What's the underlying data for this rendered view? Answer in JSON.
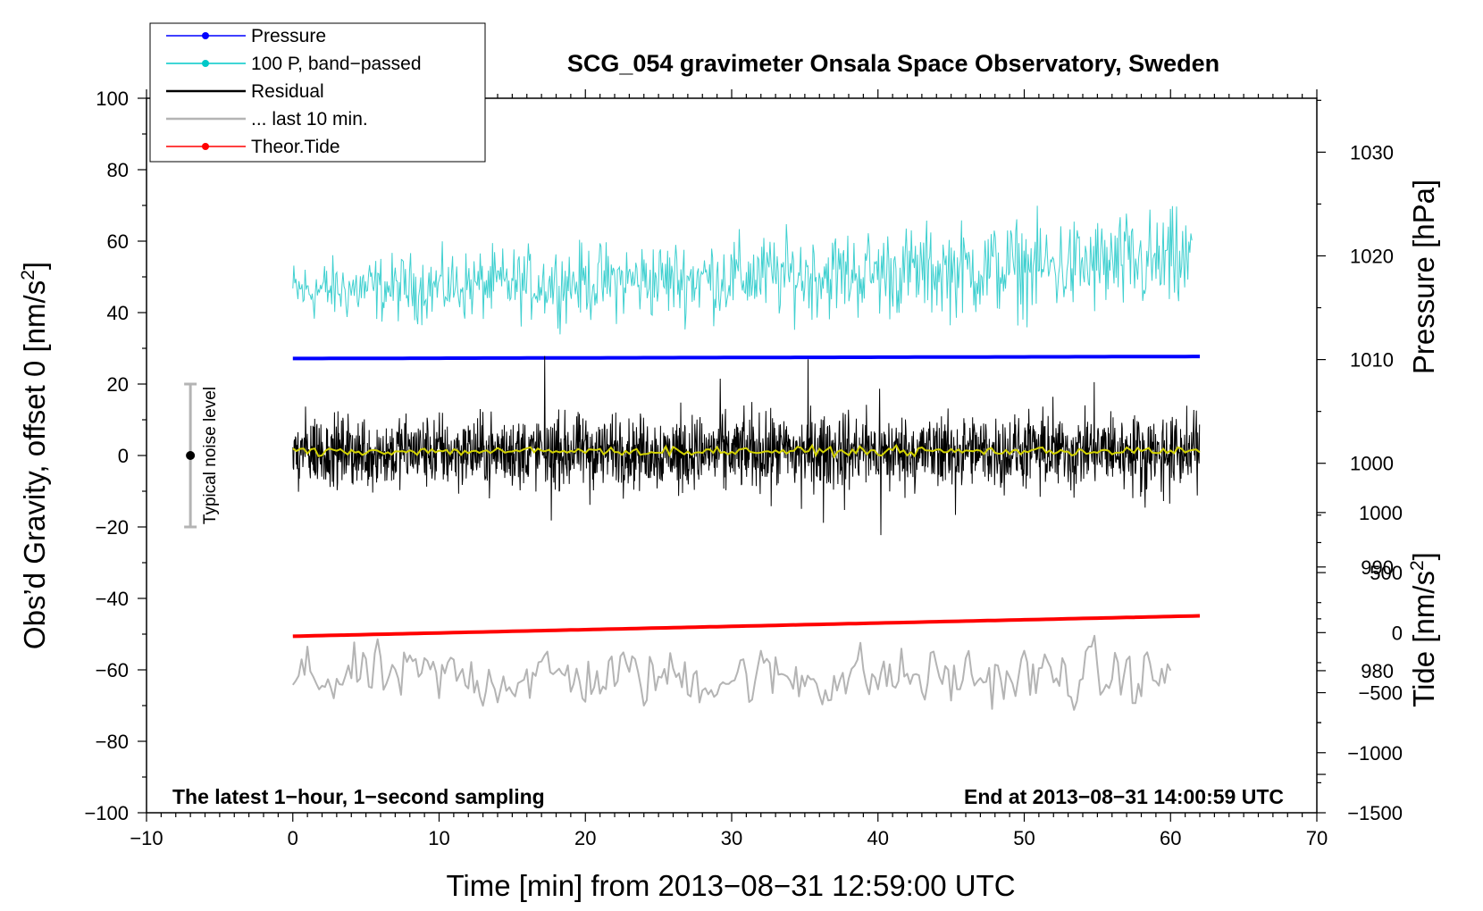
{
  "chart_data": {
    "type": "line",
    "title": "SCG_054 gravimeter Onsala Space Observatory, Sweden",
    "xlabel": "Time [min] from 2013−08−31 12:59:00 UTC",
    "ylabel_left": "Obs’d Gravity, offset 0 [nm/s",
    "ylabel_left_sup": "2",
    "ylabel_left_end": "]",
    "ylabel_right_top": "Pressure [hPa]",
    "ylabel_right_bottom": "Tide [nm/s",
    "ylabel_right_bottom_sup": "2",
    "ylabel_right_bottom_end": "]",
    "xlim": [
      -10,
      70
    ],
    "ylim": [
      -100,
      100
    ],
    "pressure_lim": [
      966.3,
      1035.2
    ],
    "tide_lim": [
      -1500,
      4450
    ],
    "x_ticks": [
      "−10",
      "0",
      "10",
      "20",
      "30",
      "40",
      "50",
      "60",
      "70"
    ],
    "x_tick_values": [
      -10,
      0,
      10,
      20,
      30,
      40,
      50,
      60,
      70
    ],
    "y_ticks": [
      "100",
      "80",
      "60",
      "40",
      "20",
      "0",
      "−20",
      "−40",
      "−60",
      "−80",
      "−100"
    ],
    "y_tick_values": [
      100,
      80,
      60,
      40,
      20,
      0,
      -20,
      -40,
      -60,
      -80,
      -100
    ],
    "pressure_ticks": [
      "1030",
      "1020",
      "1010",
      "1000",
      "990",
      "980"
    ],
    "pressure_tick_values": [
      1030,
      1020,
      1010,
      1000,
      990,
      980
    ],
    "tide_ticks": [
      "1000",
      "500",
      "0",
      "−500",
      "−1000",
      "−1500"
    ],
    "tide_tick_values": [
      1000,
      500,
      0,
      -500,
      -1000,
      -1500
    ],
    "grid": false,
    "legend_position": "top-left",
    "legend": [
      {
        "label": "Pressure",
        "color": "#0000ff",
        "marker": true
      },
      {
        "label": "100 P, band−passed",
        "color": "#00c8c8",
        "marker": true
      },
      {
        "label": "Residual",
        "color": "#000000",
        "marker": false
      },
      {
        "label": "... last 10 min.",
        "color": "#b4b4b4",
        "marker": false
      },
      {
        "label": "Theor.Tide",
        "color": "#ff0000",
        "marker": true
      }
    ],
    "series": [
      {
        "name": "Pressure",
        "axis": "pressure",
        "color": "#0000ff",
        "x_range": [
          0,
          62
        ],
        "start": 1010.1,
        "end": 1010.3
      },
      {
        "name": "100 P, band−passed",
        "axis": "left",
        "color": "#40d0d0",
        "x_range": [
          0,
          61.5
        ],
        "mean_start": 46,
        "mean_end": 54,
        "amplitude": 6
      },
      {
        "name": "Residual",
        "axis": "left",
        "color": "#000000",
        "x_range": [
          0,
          62
        ],
        "mean": 1,
        "amplitude": 5
      },
      {
        "name": "Residual smoothed",
        "axis": "left",
        "color": "#d2d200",
        "x_range": [
          0,
          62
        ],
        "mean": 1.2
      },
      {
        "name": "... last 10 min.",
        "axis": "left",
        "color": "#b4b4b4",
        "x_range": [
          0,
          60
        ],
        "mean": -62,
        "amplitude": 6
      },
      {
        "name": "Theor.Tide",
        "axis": "tide",
        "color": "#ff0000",
        "x_range": [
          0,
          62
        ],
        "start": -30,
        "end": 140
      }
    ],
    "noise_bar": {
      "label": "Typical noise level",
      "x": -7,
      "center": 0,
      "half_range": 20
    },
    "annotations": {
      "left": "The latest 1−hour, 1−second sampling",
      "right": "End at 2013−08−31 14:00:59 UTC"
    }
  }
}
